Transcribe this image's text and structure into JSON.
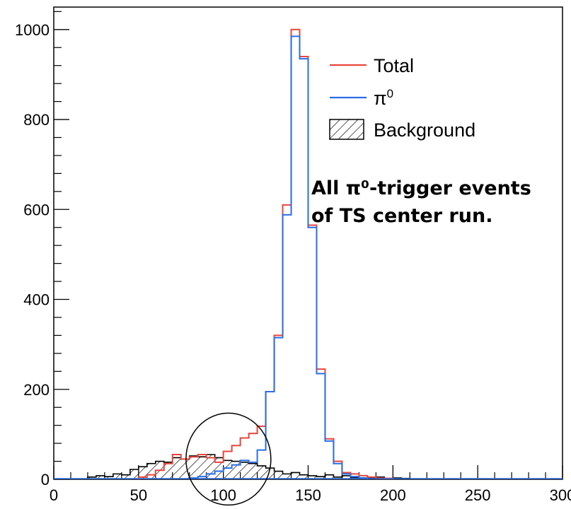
{
  "chart_data": {
    "type": "histogram",
    "xlim": [
      0,
      300
    ],
    "ylim": [
      0,
      1050
    ],
    "bin_width": 5,
    "x_ticks": [
      0,
      50,
      100,
      150,
      200,
      250,
      300
    ],
    "x_tick_labels": [
      "0",
      "50",
      "100",
      "150",
      "200",
      "250",
      "300"
    ],
    "y_ticks": [
      0,
      200,
      400,
      600,
      800,
      1000
    ],
    "y_tick_labels": [
      "0",
      "200",
      "400",
      "600",
      "800",
      "1000"
    ],
    "xlabel": "",
    "ylabel": "",
    "title": "",
    "grid": false,
    "legend_position": "top-right",
    "series": [
      {
        "name": "Total",
        "color": "#e8453c",
        "style": "step-line",
        "bins": [
          [
            50,
            5
          ],
          [
            55,
            10
          ],
          [
            60,
            20
          ],
          [
            65,
            35
          ],
          [
            70,
            55
          ],
          [
            75,
            45
          ],
          [
            80,
            50
          ],
          [
            85,
            55
          ],
          [
            90,
            48
          ],
          [
            95,
            38
          ],
          [
            100,
            62
          ],
          [
            105,
            75
          ],
          [
            110,
            92
          ],
          [
            115,
            102
          ],
          [
            120,
            118
          ],
          [
            125,
            195
          ],
          [
            130,
            320
          ],
          [
            135,
            610
          ],
          [
            140,
            1000
          ],
          [
            145,
            940
          ],
          [
            150,
            565
          ],
          [
            155,
            245
          ],
          [
            160,
            90
          ],
          [
            165,
            40
          ],
          [
            170,
            15
          ],
          [
            175,
            12
          ],
          [
            180,
            8
          ],
          [
            185,
            5
          ],
          [
            190,
            3
          ],
          [
            195,
            2
          ]
        ]
      },
      {
        "name": "π0",
        "color": "#2b6de6",
        "style": "step-line",
        "bins": [
          [
            80,
            3
          ],
          [
            85,
            6
          ],
          [
            90,
            12
          ],
          [
            95,
            18
          ],
          [
            100,
            25
          ],
          [
            105,
            32
          ],
          [
            110,
            42
          ],
          [
            115,
            38
          ],
          [
            120,
            65
          ],
          [
            125,
            195
          ],
          [
            130,
            315
          ],
          [
            135,
            588
          ],
          [
            140,
            985
          ],
          [
            145,
            935
          ],
          [
            150,
            560
          ],
          [
            155,
            235
          ],
          [
            160,
            85
          ],
          [
            165,
            35
          ],
          [
            170,
            12
          ],
          [
            175,
            6
          ],
          [
            180,
            3
          ]
        ]
      },
      {
        "name": "Background",
        "color": "#000000",
        "style": "hatched",
        "bins": [
          [
            20,
            5
          ],
          [
            25,
            8
          ],
          [
            30,
            6
          ],
          [
            35,
            12
          ],
          [
            40,
            10
          ],
          [
            45,
            22
          ],
          [
            50,
            28
          ],
          [
            55,
            35
          ],
          [
            60,
            40
          ],
          [
            65,
            38
          ],
          [
            70,
            48
          ],
          [
            75,
            45
          ],
          [
            80,
            52
          ],
          [
            85,
            50
          ],
          [
            90,
            55
          ],
          [
            95,
            48
          ],
          [
            100,
            42
          ],
          [
            105,
            40
          ],
          [
            110,
            38
          ],
          [
            115,
            35
          ],
          [
            120,
            30
          ],
          [
            125,
            25
          ],
          [
            130,
            18
          ],
          [
            135,
            12
          ],
          [
            140,
            15
          ],
          [
            145,
            10
          ],
          [
            150,
            8
          ],
          [
            155,
            6
          ],
          [
            160,
            10
          ],
          [
            165,
            5
          ],
          [
            170,
            8
          ],
          [
            175,
            4
          ],
          [
            180,
            3
          ],
          [
            185,
            3
          ],
          [
            190,
            5
          ],
          [
            195,
            2
          ],
          [
            200,
            3
          ],
          [
            205,
            2
          ]
        ]
      }
    ],
    "annotation": {
      "line1": "All π⁰-trigger events",
      "line2": "of TS center run."
    },
    "highlight_circle": {
      "center": [
        103,
        45
      ],
      "note": "circle drawn around low-mass region"
    }
  }
}
